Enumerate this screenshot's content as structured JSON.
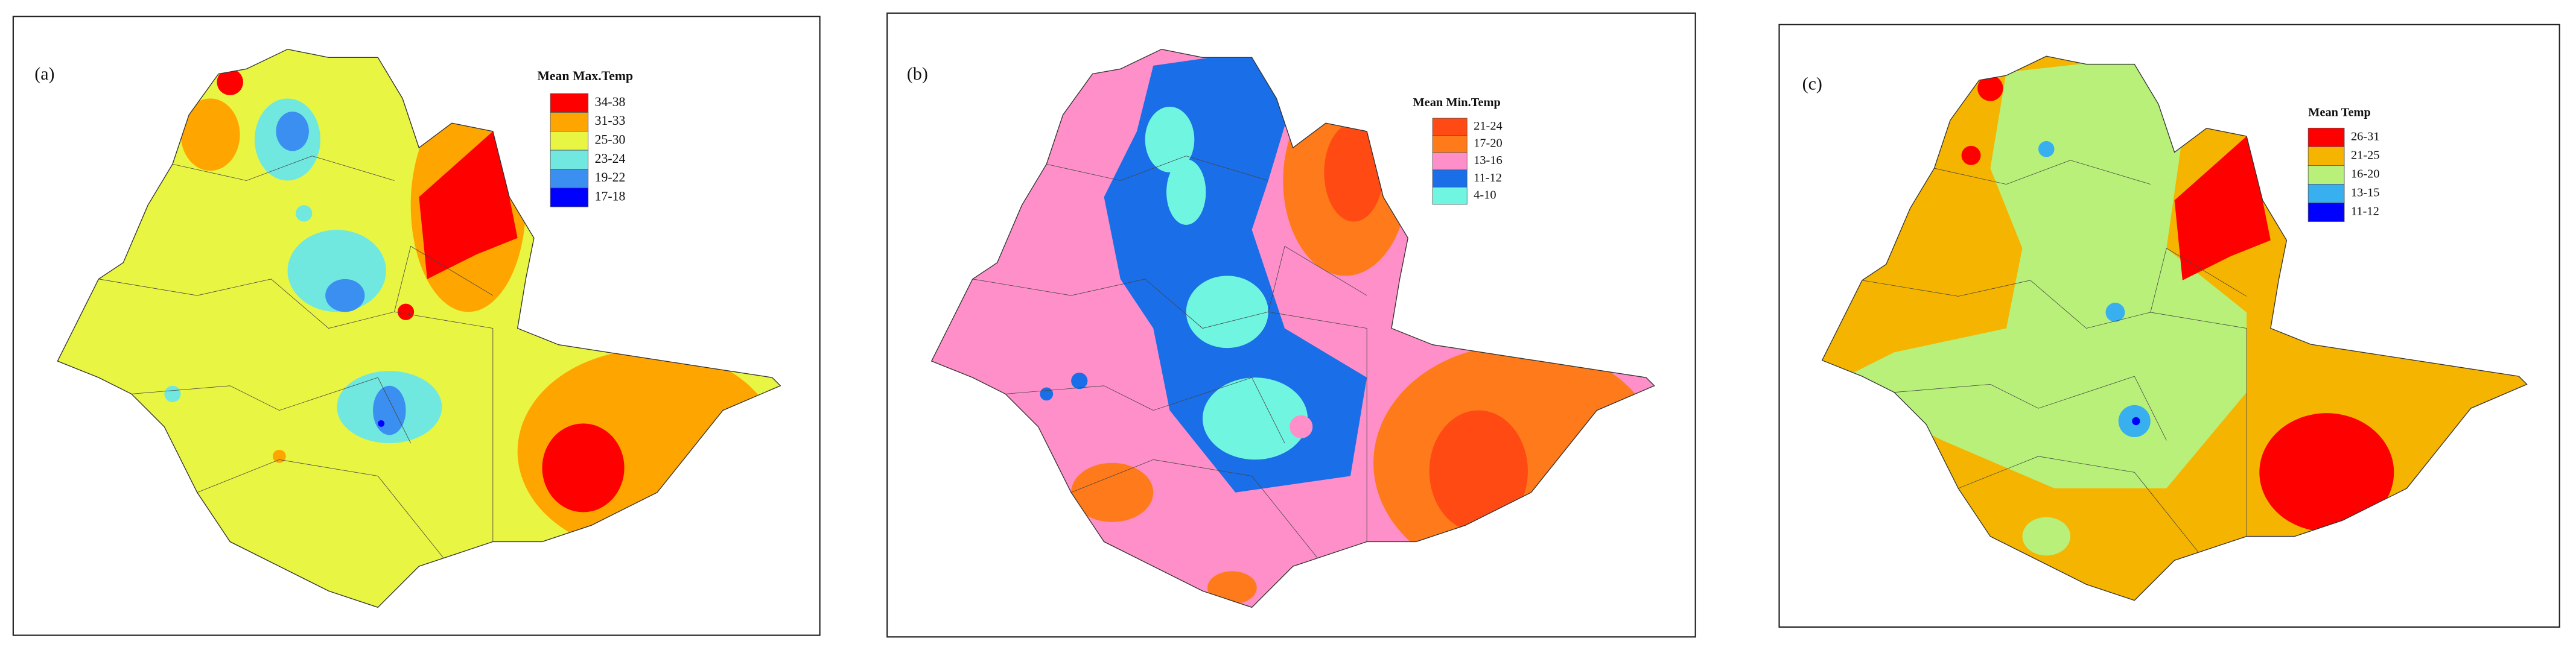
{
  "panels": [
    {
      "label": "(a)",
      "legend": {
        "title": "Mean Max.Temp",
        "items": [
          {
            "label": "34-38",
            "color": "#ff0000"
          },
          {
            "label": "31-33",
            "color": "#ffa500"
          },
          {
            "label": "25-30",
            "color": "#e8f542"
          },
          {
            "label": "23-24",
            "color": "#70e8e0"
          },
          {
            "label": "19-22",
            "color": "#3a8ff0"
          },
          {
            "label": "17-18",
            "color": "#0000ff"
          }
        ]
      }
    },
    {
      "label": "(b)",
      "legend": {
        "title": "Mean Min.Temp",
        "items": [
          {
            "label": "21-24",
            "color": "#ff4a14"
          },
          {
            "label": "17-20",
            "color": "#ff7a1a"
          },
          {
            "label": "13-16",
            "color": "#ff8fc8"
          },
          {
            "label": "11-12",
            "color": "#1a6ee8"
          },
          {
            "label": "4-10",
            "color": "#70f5e0"
          }
        ]
      }
    },
    {
      "label": "(c)",
      "legend": {
        "title": "Mean Temp",
        "items": [
          {
            "label": "26-31",
            "color": "#ff0000"
          },
          {
            "label": "21-25",
            "color": "#f5b400"
          },
          {
            "label": "16-20",
            "color": "#b8f07a"
          },
          {
            "label": "13-15",
            "color": "#38b0f0"
          },
          {
            "label": "11-12",
            "color": "#0000ff"
          }
        ]
      }
    }
  ]
}
